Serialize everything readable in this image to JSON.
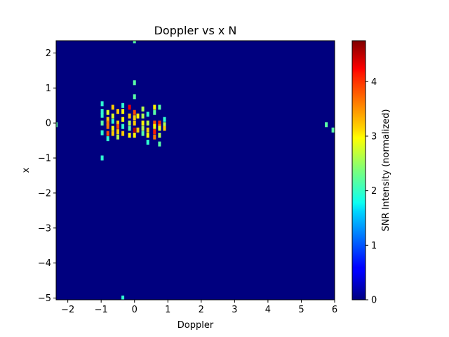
{
  "chart_data": {
    "type": "heatmap",
    "title": "Doppler vs x N",
    "xlabel": "Doppler",
    "ylabel": "x",
    "xlim": [
      -2.35,
      6.0
    ],
    "ylim": [
      -5.05,
      2.35
    ],
    "xticks": [
      -2,
      -1,
      0,
      1,
      2,
      3,
      4,
      5,
      6
    ],
    "yticks": [
      -5,
      -4,
      -3,
      -2,
      -1,
      0,
      1,
      2
    ],
    "colorbar": {
      "label": "SNR Intensity (normalized)",
      "range": [
        0,
        4.75
      ],
      "ticks": [
        0,
        1,
        2,
        3,
        4
      ],
      "colormap": "jet"
    },
    "background_value": 0,
    "cells": [
      {
        "x": -0.97,
        "y": 0.55,
        "v": 2.0
      },
      {
        "x": -0.97,
        "y": 0.33,
        "v": 2.0
      },
      {
        "x": -0.97,
        "y": 0.22,
        "v": 2.0
      },
      {
        "x": -0.97,
        "y": 0.0,
        "v": 2.2
      },
      {
        "x": -0.97,
        "y": -0.28,
        "v": 2.0
      },
      {
        "x": -0.97,
        "y": -1.0,
        "v": 2.0
      },
      {
        "x": -0.8,
        "y": 0.3,
        "v": 2.8
      },
      {
        "x": -0.8,
        "y": 0.1,
        "v": 3.2
      },
      {
        "x": -0.8,
        "y": 0.0,
        "v": 3.6
      },
      {
        "x": -0.8,
        "y": -0.1,
        "v": 3.6
      },
      {
        "x": -0.8,
        "y": -0.3,
        "v": 3.8
      },
      {
        "x": -0.8,
        "y": -0.45,
        "v": 2.0
      },
      {
        "x": -0.65,
        "y": 0.45,
        "v": 3.2
      },
      {
        "x": -0.65,
        "y": 0.2,
        "v": 2.8
      },
      {
        "x": -0.65,
        "y": 0.05,
        "v": 2.0
      },
      {
        "x": -0.65,
        "y": -0.15,
        "v": 3.0
      },
      {
        "x": -0.65,
        "y": -0.3,
        "v": 3.2
      },
      {
        "x": -0.5,
        "y": 0.33,
        "v": 3.2
      },
      {
        "x": -0.5,
        "y": 0.0,
        "v": 3.2
      },
      {
        "x": -0.5,
        "y": -0.1,
        "v": 3.8
      },
      {
        "x": -0.5,
        "y": -0.25,
        "v": 3.2
      },
      {
        "x": -0.5,
        "y": -0.4,
        "v": 2.6
      },
      {
        "x": -0.35,
        "y": 0.5,
        "v": 2.0
      },
      {
        "x": -0.35,
        "y": 0.33,
        "v": 3.0
      },
      {
        "x": -0.35,
        "y": 0.1,
        "v": 3.0
      },
      {
        "x": -0.35,
        "y": -0.1,
        "v": 2.0
      },
      {
        "x": -0.35,
        "y": -0.3,
        "v": 3.2
      },
      {
        "x": -0.15,
        "y": 0.45,
        "v": 4.2
      },
      {
        "x": -0.15,
        "y": 0.2,
        "v": 3.2
      },
      {
        "x": -0.15,
        "y": 0.0,
        "v": 2.6
      },
      {
        "x": -0.15,
        "y": -0.15,
        "v": 2.2
      },
      {
        "x": -0.15,
        "y": -0.35,
        "v": 3.0
      },
      {
        "x": 0.0,
        "y": 1.15,
        "v": 2.2
      },
      {
        "x": 0.0,
        "y": 0.75,
        "v": 2.2
      },
      {
        "x": 0.0,
        "y": 0.3,
        "v": 3.8
      },
      {
        "x": 0.0,
        "y": 0.15,
        "v": 3.2
      },
      {
        "x": 0.0,
        "y": 0.0,
        "v": 3.2
      },
      {
        "x": 0.0,
        "y": -0.2,
        "v": 4.5
      },
      {
        "x": 0.0,
        "y": -0.35,
        "v": 3.0
      },
      {
        "x": 0.1,
        "y": 0.2,
        "v": 3.0
      },
      {
        "x": 0.1,
        "y": -0.2,
        "v": 3.2
      },
      {
        "x": 0.25,
        "y": 0.4,
        "v": 2.6
      },
      {
        "x": 0.25,
        "y": 0.2,
        "v": 2.6
      },
      {
        "x": 0.25,
        "y": 0.0,
        "v": 3.0
      },
      {
        "x": 0.25,
        "y": -0.15,
        "v": 2.6
      },
      {
        "x": 0.25,
        "y": -0.3,
        "v": 2.2
      },
      {
        "x": 0.4,
        "y": 0.25,
        "v": 2.0
      },
      {
        "x": 0.4,
        "y": 0.0,
        "v": 2.6
      },
      {
        "x": 0.4,
        "y": -0.2,
        "v": 3.2
      },
      {
        "x": 0.4,
        "y": -0.35,
        "v": 3.0
      },
      {
        "x": 0.4,
        "y": -0.55,
        "v": 2.0
      },
      {
        "x": 0.6,
        "y": 0.45,
        "v": 3.0
      },
      {
        "x": 0.6,
        "y": 0.3,
        "v": 2.2
      },
      {
        "x": 0.6,
        "y": 0.0,
        "v": 3.8
      },
      {
        "x": 0.6,
        "y": -0.1,
        "v": 3.0
      },
      {
        "x": 0.6,
        "y": -0.25,
        "v": 4.0
      },
      {
        "x": 0.6,
        "y": -0.4,
        "v": 3.6
      },
      {
        "x": 0.75,
        "y": 0.45,
        "v": 2.2
      },
      {
        "x": 0.75,
        "y": 0.0,
        "v": 4.0
      },
      {
        "x": 0.75,
        "y": -0.1,
        "v": 3.6
      },
      {
        "x": 0.75,
        "y": -0.15,
        "v": 2.8
      },
      {
        "x": 0.75,
        "y": -0.35,
        "v": 2.6
      },
      {
        "x": 0.75,
        "y": -0.6,
        "v": 2.2
      },
      {
        "x": 0.9,
        "y": 0.1,
        "v": 2.0
      },
      {
        "x": 0.9,
        "y": -0.05,
        "v": 2.6
      },
      {
        "x": 0.9,
        "y": -0.15,
        "v": 3.2
      },
      {
        "x": 0.0,
        "y": 2.35,
        "v": 2.2
      },
      {
        "x": -0.35,
        "y": -5.0,
        "v": 2.0
      },
      {
        "x": -2.35,
        "y": -0.05,
        "v": 2.2
      },
      {
        "x": 5.75,
        "y": -0.05,
        "v": 2.2
      },
      {
        "x": 5.95,
        "y": -0.2,
        "v": 2.2
      }
    ]
  }
}
